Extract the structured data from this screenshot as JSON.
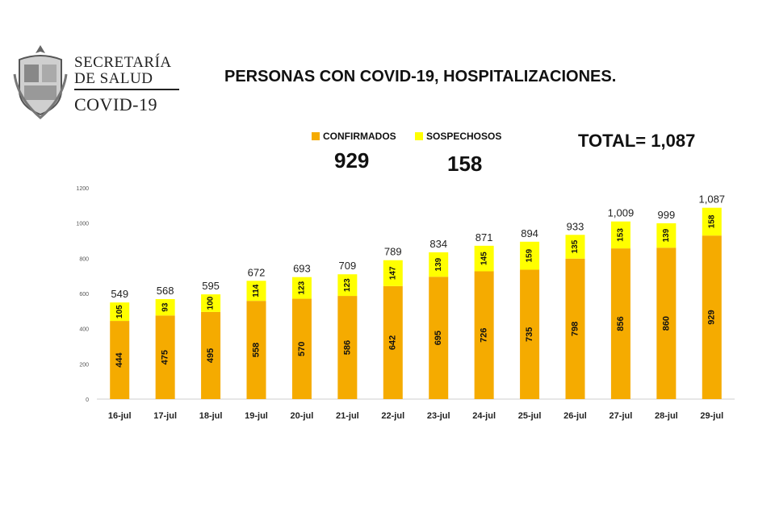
{
  "header": {
    "org_line1": "SECRETARÍA",
    "org_line2": "DE SALUD",
    "org_line3": "COVID-19",
    "logo_icon": "coat-of-arms-icon"
  },
  "title": "PERSONAS CON COVID-19, HOSPITALIZACIONES.",
  "summary": {
    "confirmados_label": "CONFIRMADOS",
    "sospechosos_label": "SOSPECHOSOS",
    "confirmados_value": "929",
    "sospechosos_value": "158",
    "total": "TOTAL= 1,087"
  },
  "colors": {
    "confirmados": "#F5AB00",
    "sospechosos": "#FFFF00"
  },
  "chart_data": {
    "type": "bar",
    "stacked": true,
    "categories": [
      "16-jul",
      "17-jul",
      "18-jul",
      "19-jul",
      "20-jul",
      "21-jul",
      "22-jul",
      "23-jul",
      "24-jul",
      "25-jul",
      "26-jul",
      "27-jul",
      "28-jul",
      "29-jul"
    ],
    "series": [
      {
        "name": "CONFIRMADOS",
        "values": [
          444,
          475,
          495,
          558,
          570,
          586,
          642,
          695,
          726,
          735,
          798,
          856,
          860,
          929
        ]
      },
      {
        "name": "SOSPECHOSOS",
        "values": [
          105,
          93,
          100,
          114,
          123,
          123,
          147,
          139,
          145,
          159,
          135,
          153,
          139,
          158
        ]
      }
    ],
    "totals": [
      "549",
      "568",
      "595",
      "672",
      "693",
      "709",
      "789",
      "834",
      "871",
      "894",
      "933",
      "1,009",
      "999",
      "1,087"
    ],
    "ylim": [
      0,
      1200
    ],
    "yticks": [
      0,
      200,
      400,
      600,
      800,
      1000,
      1200
    ],
    "grid": false,
    "legend": "top-center"
  }
}
